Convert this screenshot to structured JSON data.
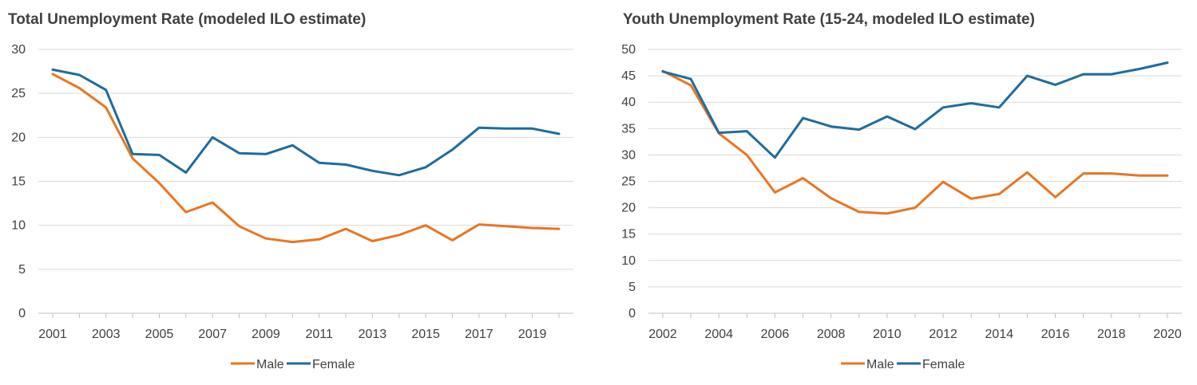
{
  "chart_data": [
    {
      "type": "line",
      "title": "Total Unemployment Rate (modeled ILO estimate)",
      "xlabel": "",
      "ylabel": "",
      "ylim": [
        0,
        30
      ],
      "yticks": [
        0,
        5,
        10,
        15,
        20,
        25,
        30
      ],
      "x": [
        2001,
        2002,
        2003,
        2004,
        2005,
        2006,
        2007,
        2008,
        2009,
        2010,
        2011,
        2012,
        2013,
        2014,
        2015,
        2016,
        2017,
        2018,
        2019,
        2020
      ],
      "xtick_labels": [
        "2001",
        "2003",
        "2005",
        "2007",
        "2009",
        "2011",
        "2013",
        "2015",
        "2017",
        "2019"
      ],
      "series": [
        {
          "name": "Male",
          "color": "#E97522",
          "values": [
            27.2,
            25.6,
            23.4,
            17.6,
            14.8,
            11.5,
            12.6,
            9.9,
            8.5,
            8.1,
            8.4,
            9.6,
            8.2,
            8.9,
            10.0,
            8.3,
            10.1,
            9.9,
            9.7,
            9.6
          ]
        },
        {
          "name": "Female",
          "color": "#1F6B9E",
          "values": [
            27.7,
            27.1,
            25.4,
            18.1,
            18.0,
            16.0,
            20.0,
            18.2,
            18.1,
            19.1,
            17.1,
            16.9,
            16.2,
            15.7,
            16.6,
            18.6,
            21.1,
            21.0,
            21.0,
            20.4
          ]
        }
      ],
      "legend": "bottom-center",
      "grid": true
    },
    {
      "type": "line",
      "title": "Youth Unemployment Rate (15-24, modeled ILO estimate)",
      "xlabel": "",
      "ylabel": "",
      "ylim": [
        0,
        50
      ],
      "yticks": [
        0,
        5,
        10,
        15,
        20,
        25,
        30,
        35,
        40,
        45,
        50
      ],
      "x": [
        2002,
        2003,
        2004,
        2005,
        2006,
        2007,
        2008,
        2009,
        2010,
        2011,
        2012,
        2013,
        2014,
        2015,
        2016,
        2017,
        2018,
        2019,
        2020
      ],
      "xtick_labels": [
        "2002",
        "2004",
        "2006",
        "2008",
        "2010",
        "2012",
        "2014",
        "2016",
        "2018",
        "2020"
      ],
      "series": [
        {
          "name": "Male",
          "color": "#E97522",
          "values": [
            45.9,
            43.2,
            34.1,
            30.0,
            22.9,
            25.6,
            21.8,
            19.2,
            18.9,
            20.0,
            24.9,
            21.7,
            22.6,
            26.7,
            22.0,
            26.5,
            26.5,
            26.1,
            26.1
          ]
        },
        {
          "name": "Female",
          "color": "#1F6B9E",
          "values": [
            45.8,
            44.4,
            34.2,
            34.5,
            29.5,
            37.0,
            35.4,
            34.8,
            37.3,
            34.9,
            39.0,
            39.8,
            39.0,
            45.0,
            43.3,
            45.3,
            45.3,
            46.3,
            47.5
          ]
        }
      ],
      "legend": "bottom-center",
      "grid": true
    }
  ]
}
